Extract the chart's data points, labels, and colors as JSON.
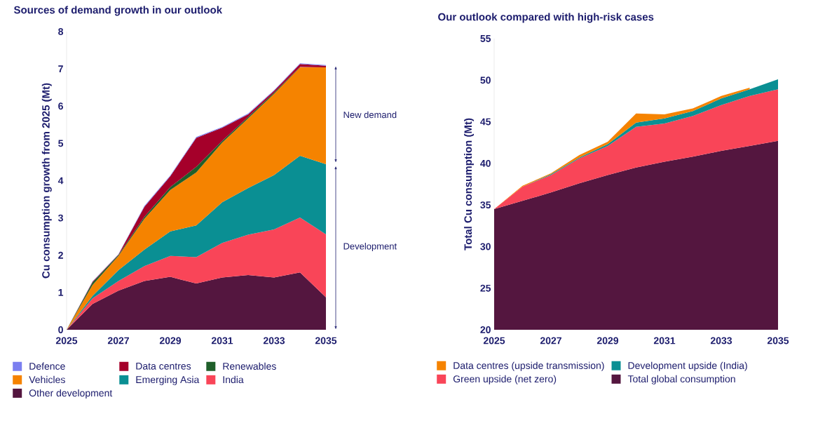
{
  "chart_data": [
    {
      "type": "area",
      "title": "Sources of demand growth in our outlook",
      "ylabel": "Cu consumption growth from 2025 (Mt)",
      "stacked": true,
      "legend": "bottom",
      "grid": false,
      "x": [
        2025,
        2026,
        2027,
        2028,
        2029,
        2030,
        2031,
        2032,
        2033,
        2034,
        2035
      ],
      "xlim": [
        2025,
        2035
      ],
      "xticks": [
        2025,
        2027,
        2029,
        2031,
        2033,
        2035
      ],
      "ylim": [
        0,
        8
      ],
      "yticks": [
        0,
        1,
        2,
        3,
        4,
        5,
        6,
        7,
        8
      ],
      "annotations": [
        "New demand",
        "Development"
      ],
      "series": [
        {
          "name": "Other development",
          "color": "#54163f",
          "values": [
            0,
            0.69,
            1.05,
            1.31,
            1.42,
            1.24,
            1.4,
            1.47,
            1.4,
            1.54,
            0.87
          ]
        },
        {
          "name": "India",
          "color": "#f94558",
          "values": [
            0,
            0.15,
            0.26,
            0.4,
            0.56,
            0.71,
            0.93,
            1.08,
            1.29,
            1.47,
            1.69
          ]
        },
        {
          "name": "Emerging Asia",
          "color": "#0a8f93",
          "values": [
            0,
            0.07,
            0.29,
            0.44,
            0.66,
            0.85,
            1.09,
            1.25,
            1.46,
            1.66,
            1.88
          ]
        },
        {
          "name": "Vehicles",
          "color": "#f58300",
          "values": [
            0,
            0.29,
            0.38,
            0.83,
            1.11,
            1.42,
            1.6,
            1.87,
            2.18,
            2.37,
            2.6
          ]
        },
        {
          "name": "Renewables",
          "color": "#1f5f2a",
          "values": [
            0,
            0.07,
            0.03,
            0.05,
            0.08,
            0.15,
            0.05,
            0.04,
            0.03,
            0.01,
            null
          ]
        },
        {
          "name": "Data centres",
          "color": "#a5002a",
          "values": [
            0,
            0.02,
            0.01,
            0.27,
            0.29,
            0.78,
            0.35,
            0.07,
            0.05,
            0.08,
            0.04
          ]
        },
        {
          "name": "Defence",
          "color": "#7b7ff0",
          "values": [
            0,
            0.01,
            0.01,
            0.02,
            0.02,
            0.02,
            0.02,
            0.02,
            0.02,
            0.02,
            0.02
          ]
        }
      ]
    },
    {
      "type": "area",
      "title": "Our outlook compared with high-risk cases",
      "ylabel": "Total Cu consumption (Mt)",
      "legend": "bottom",
      "grid": false,
      "x": [
        2025,
        2026,
        2027,
        2028,
        2029,
        2030,
        2031,
        2032,
        2033,
        2034,
        2035
      ],
      "xlim": [
        2025,
        2035
      ],
      "xticks": [
        2025,
        2027,
        2029,
        2031,
        2033,
        2035
      ],
      "ylim": [
        20,
        55
      ],
      "yticks": [
        20,
        25,
        30,
        35,
        40,
        45,
        50,
        55
      ],
      "series": [
        {
          "name": "Total global consumption",
          "color": "#54163f",
          "values": [
            34.5,
            35.5,
            36.5,
            37.6,
            38.6,
            39.5,
            40.2,
            40.8,
            41.5,
            42.1,
            42.7
          ]
        },
        {
          "name": "Green upside (net zero)",
          "color": "#f94558",
          "values": [
            34.5,
            37.2,
            38.6,
            40.6,
            42.1,
            44.4,
            44.8,
            45.7,
            47.0,
            48.1,
            48.9
          ]
        },
        {
          "name": "Development upside (India)",
          "color": "#0a8f93",
          "values": [
            34.5,
            37.2,
            38.7,
            40.7,
            42.3,
            44.9,
            45.4,
            46.3,
            47.8,
            48.9,
            50.1
          ]
        },
        {
          "name": "Data centres (upside transmission)",
          "color": "#f58300",
          "values": [
            34.5,
            37.3,
            38.8,
            41.0,
            42.6,
            46.0,
            45.9,
            46.6,
            48.1,
            49.1,
            null
          ]
        }
      ]
    }
  ]
}
